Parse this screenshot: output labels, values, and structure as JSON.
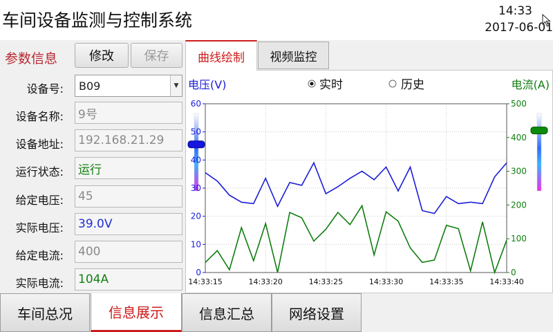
{
  "header": {
    "title": "车间设备监测与控制系统",
    "time": "14:33",
    "date": "2017-06-01"
  },
  "params": {
    "title": "参数信息",
    "edit_label": "修改",
    "save_label": "保存",
    "fields": [
      {
        "label": "设备号:",
        "value": "B09"
      },
      {
        "label": "设备名称:",
        "value": "9号"
      },
      {
        "label": "设备地址:",
        "value": "192.168.21.29"
      },
      {
        "label": "运行状态:",
        "value": "运行"
      },
      {
        "label": "给定电压:",
        "value": "45"
      },
      {
        "label": "实际电压:",
        "value": "39.0V"
      },
      {
        "label": "给定电流:",
        "value": "400"
      },
      {
        "label": "实际电流:",
        "value": "104A"
      }
    ]
  },
  "tabs": {
    "curve": "曲线绘制",
    "video": "视频监控"
  },
  "mode": {
    "realtime": "实时",
    "history": "历史",
    "selected": "realtime"
  },
  "sliders": {
    "voltage_level": 0.6,
    "current_level": 0.78
  },
  "colors": {
    "voltage": "#1b1bd8",
    "current": "#0f7d0f",
    "accent": "#cc1c1c"
  },
  "chart_data": {
    "type": "line",
    "y_left_label": "电压(V)",
    "y_right_label": "电流(A)",
    "y_left_range": [
      0,
      60
    ],
    "y_right_range": [
      0,
      500
    ],
    "y_left_ticks": [
      "0",
      "10",
      "20",
      "30",
      "40",
      "50",
      "60"
    ],
    "y_right_ticks": [
      "0",
      "100",
      "200",
      "300",
      "400",
      "500"
    ],
    "x_ticks": [
      "14:33:15",
      "14:33:20",
      "14:33:25",
      "14:33:30",
      "14:33:35",
      "14:33:40"
    ],
    "grid": true,
    "series": [
      {
        "name": "电压(V)",
        "axis": "left",
        "values": [
          35.5,
          32.5,
          27.5,
          25,
          24.5,
          33.5,
          23.5,
          32,
          31,
          39,
          28,
          30.5,
          33.5,
          36,
          33,
          37.5,
          29,
          37.5,
          22,
          21,
          27,
          24.5,
          25,
          24.5,
          34,
          39
        ]
      },
      {
        "name": "电流(A)",
        "axis": "right",
        "values": [
          30,
          65,
          8,
          133,
          35,
          145,
          0,
          178,
          162,
          93,
          128,
          178,
          142,
          198,
          52,
          180,
          152,
          73,
          30,
          37,
          140,
          130,
          5,
          150,
          0,
          96
        ]
      }
    ]
  },
  "nav": {
    "items": [
      "车间总况",
      "信息展示",
      "信息汇总",
      "网络设置"
    ],
    "active": 1
  }
}
